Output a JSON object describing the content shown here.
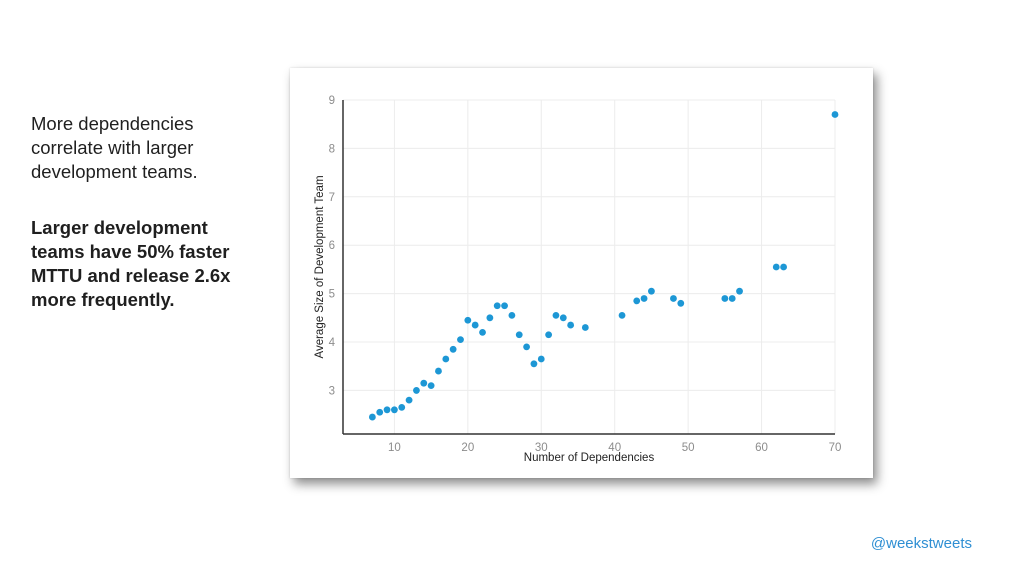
{
  "slide": {
    "intro_text": "More dependencies correlate with larger development teams.",
    "emphasis_text": "Larger development teams have 50% faster MTTU and release 2.6x more frequently.",
    "handle": "@weekstweets"
  },
  "chart_data": {
    "type": "scatter",
    "title": "",
    "xlabel": "Number of Dependencies",
    "ylabel": "Average Size of Development Team",
    "xlim": [
      3,
      70
    ],
    "ylim": [
      2.1,
      9.0
    ],
    "xticks": [
      "10",
      "20",
      "30",
      "40",
      "50",
      "60",
      "70"
    ],
    "yticks": [
      "3",
      "4",
      "5",
      "6",
      "7",
      "8",
      "9"
    ],
    "grid": true,
    "point_color": "#1d97d5",
    "points": [
      {
        "x": 7,
        "y": 2.45
      },
      {
        "x": 8,
        "y": 2.55
      },
      {
        "x": 9,
        "y": 2.6
      },
      {
        "x": 10,
        "y": 2.6
      },
      {
        "x": 11,
        "y": 2.65
      },
      {
        "x": 12,
        "y": 2.8
      },
      {
        "x": 13,
        "y": 3.0
      },
      {
        "x": 14,
        "y": 3.15
      },
      {
        "x": 15,
        "y": 3.1
      },
      {
        "x": 16,
        "y": 3.4
      },
      {
        "x": 17,
        "y": 3.65
      },
      {
        "x": 18,
        "y": 3.85
      },
      {
        "x": 19,
        "y": 4.05
      },
      {
        "x": 20,
        "y": 4.45
      },
      {
        "x": 21,
        "y": 4.35
      },
      {
        "x": 22,
        "y": 4.2
      },
      {
        "x": 23,
        "y": 4.5
      },
      {
        "x": 24,
        "y": 4.75
      },
      {
        "x": 25,
        "y": 4.75
      },
      {
        "x": 26,
        "y": 4.55
      },
      {
        "x": 27,
        "y": 4.15
      },
      {
        "x": 28,
        "y": 3.9
      },
      {
        "x": 29,
        "y": 3.55
      },
      {
        "x": 30,
        "y": 3.65
      },
      {
        "x": 31,
        "y": 4.15
      },
      {
        "x": 32,
        "y": 4.55
      },
      {
        "x": 33,
        "y": 4.5
      },
      {
        "x": 34,
        "y": 4.35
      },
      {
        "x": 36,
        "y": 4.3
      },
      {
        "x": 41,
        "y": 4.55
      },
      {
        "x": 43,
        "y": 4.85
      },
      {
        "x": 44,
        "y": 4.9
      },
      {
        "x": 45,
        "y": 5.05
      },
      {
        "x": 48,
        "y": 4.9
      },
      {
        "x": 49,
        "y": 4.8
      },
      {
        "x": 55,
        "y": 4.9
      },
      {
        "x": 56,
        "y": 4.9
      },
      {
        "x": 57,
        "y": 5.05
      },
      {
        "x": 62,
        "y": 5.55
      },
      {
        "x": 63,
        "y": 5.55
      },
      {
        "x": 70,
        "y": 8.7
      }
    ]
  }
}
